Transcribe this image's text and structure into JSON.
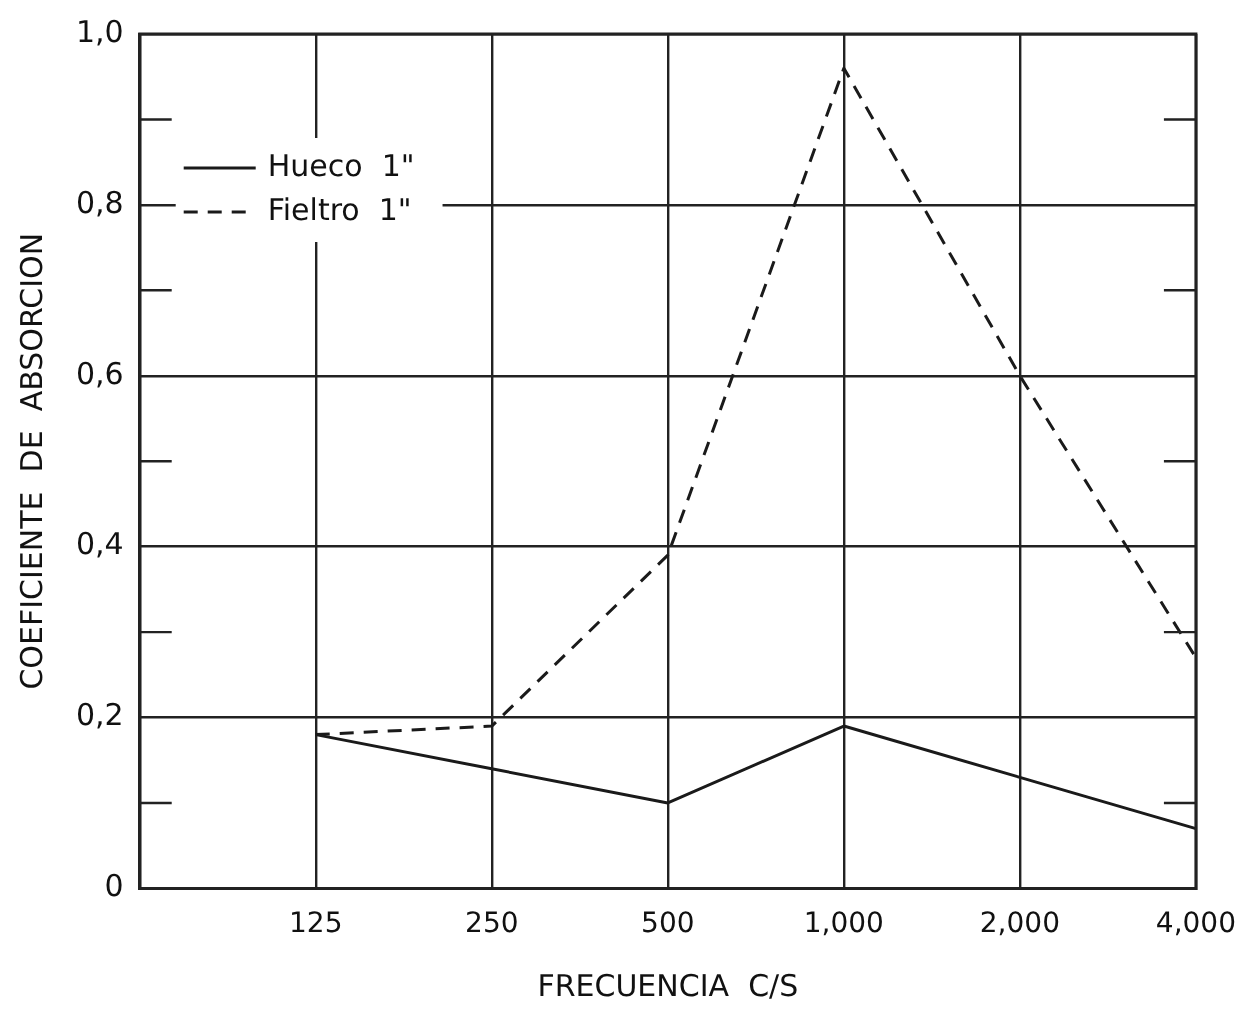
{
  "chart_data": {
    "type": "line",
    "xlabel": "FRECUENCIA  C/S",
    "ylabel": "COEFICIENTE  DE  ABSORCION",
    "categories": [
      null,
      "125",
      "250",
      "500",
      "1,000",
      "2,000",
      "4,000"
    ],
    "series": [
      {
        "name": "Hueco  1\"",
        "color": "#1a1a1a",
        "line_style": "solid",
        "values": [
          null,
          0.18,
          0.14,
          0.1,
          0.19,
          0.13,
          0.07
        ]
      },
      {
        "name": "Fieltro  1\"",
        "color": "#1a1a1a",
        "line_style": "dashed",
        "values": [
          null,
          0.18,
          0.19,
          0.39,
          0.96,
          0.6,
          0.27
        ]
      }
    ],
    "ylim": [
      0,
      1
    ],
    "yticks": [
      {
        "value": 0,
        "label": "0"
      },
      {
        "value": 0.2,
        "label": "0,2"
      },
      {
        "value": 0.4,
        "label": "0,4"
      },
      {
        "value": 0.6,
        "label": "0,6"
      },
      {
        "value": 0.8,
        "label": "0,8"
      },
      {
        "value": 1,
        "label": "1,0"
      }
    ],
    "grid": true,
    "legend": "top left",
    "marker": "none"
  }
}
